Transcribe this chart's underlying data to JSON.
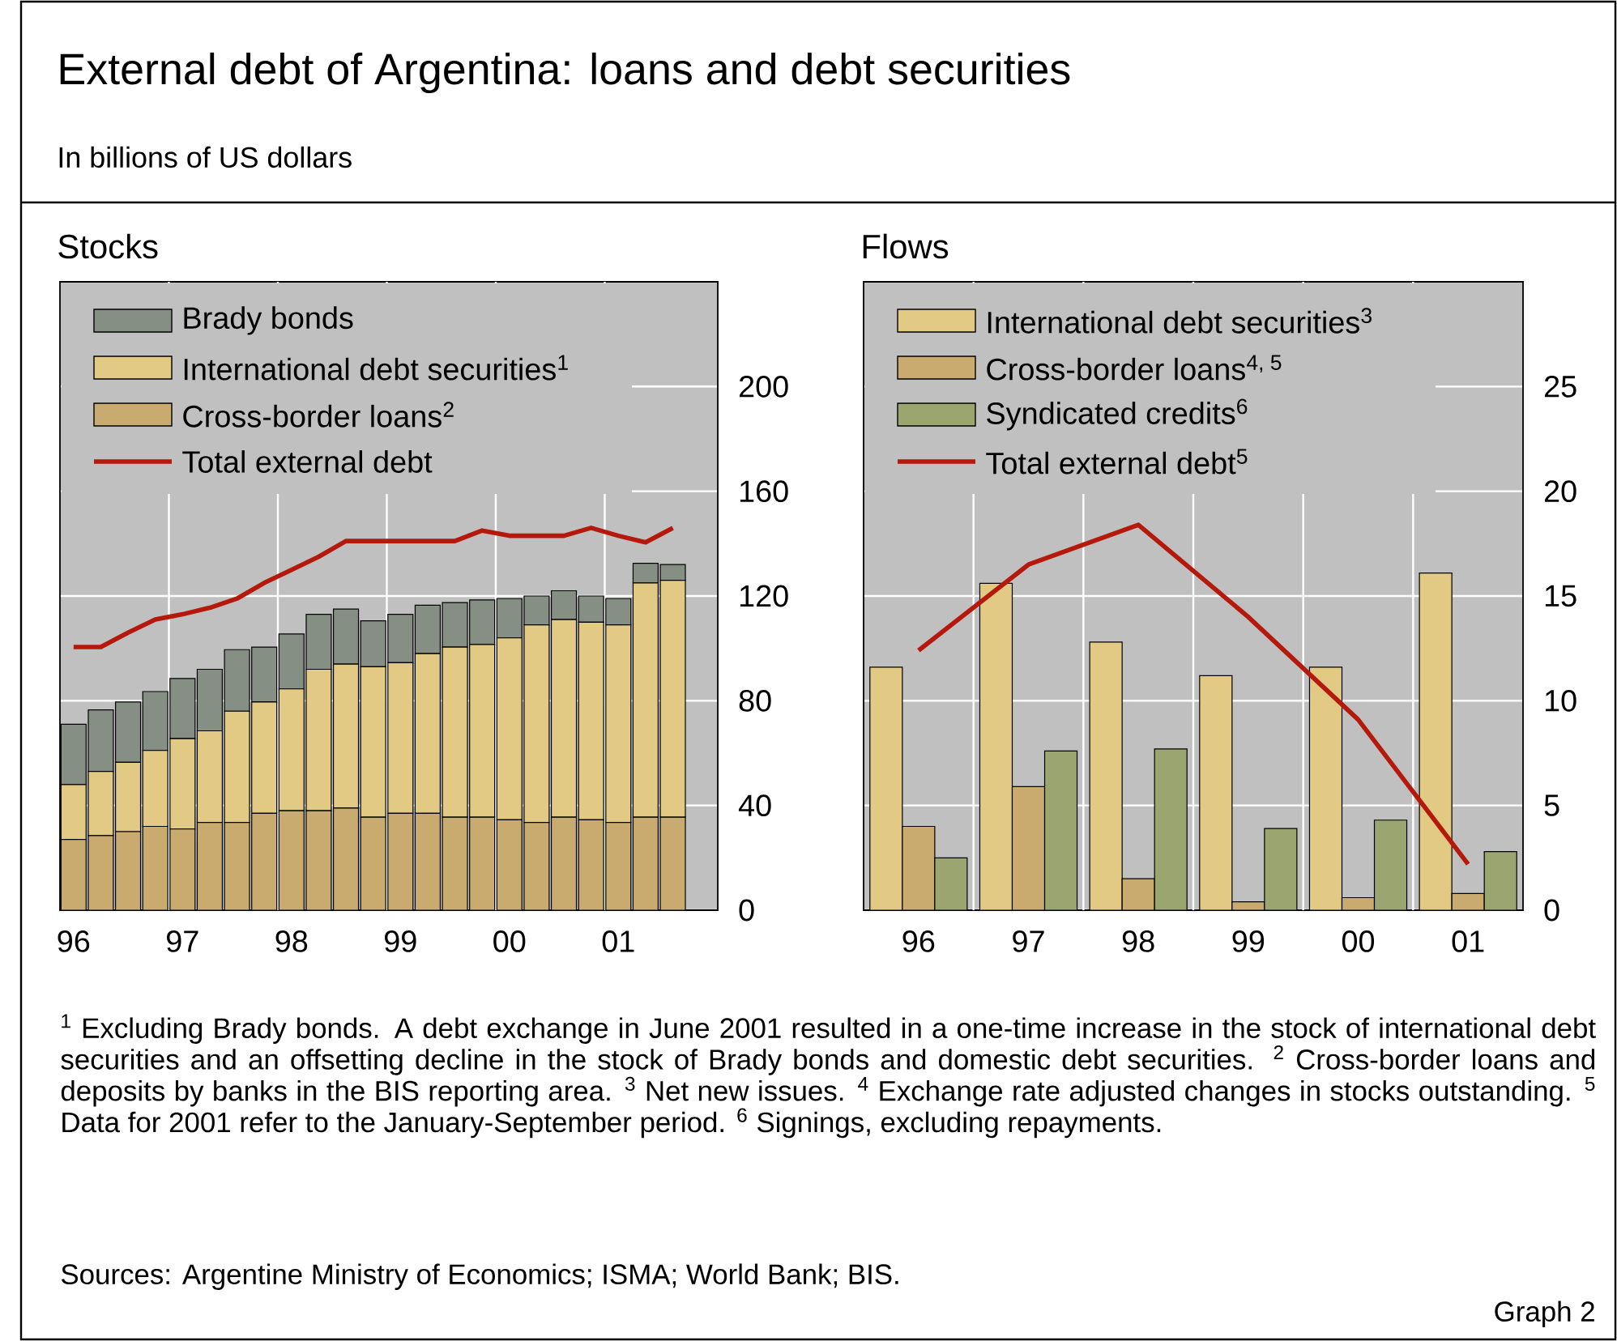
{
  "chart_data": [
    {
      "type": "other",
      "title": "External debt of Argentina: loans and debt securities",
      "subtitle": "In billions of US dollars",
      "annotations": [
        "$^{1}$ Excluding Brady bonds. A debt exchange in June 2001 resulted in a one-time increase in the stock of international debt securities and an offsetting decline in the stock of Brady bonds and domestic debt securities. $^{2}$ Cross-border loans and deposits by banks in the BIS reporting area. $^{3}$ Net new issues. $^{4}$ Exchange rate adjusted changes in stocks outstanding. $^{5}$ Data for 2001 refer to the January-September period. $^{6}$ Signings, excluding repayments.",
        "Sources: Argentine Ministry of Economics; ISMA; World Bank; BIS.",
        "Graph 2"
      ]
    },
    {
      "type": "bar",
      "title": "Stocks",
      "stacked": true,
      "grid": true,
      "legend": "top left",
      "categories": [
        "96",
        null,
        null,
        null,
        "97",
        null,
        null,
        null,
        "98",
        null,
        null,
        null,
        "99",
        null,
        null,
        null,
        "00",
        null,
        null,
        null,
        "01",
        null,
        null
      ],
      "ylim": [
        0,
        240
      ],
      "yticks": [
        0,
        40,
        80,
        120,
        160,
        200
      ],
      "series": [
        {
          "name": "Cross-border loans$^{2}$",
          "color": "#c9ab6f",
          "values": [
            27,
            28.5,
            30,
            32,
            31,
            33.5,
            33.5,
            37,
            38,
            38,
            39,
            35.5,
            37,
            37,
            35.5,
            35.5,
            34.5,
            33.5,
            35.5,
            34.5,
            33.5,
            35.5,
            35.5
          ]
        },
        {
          "name": "International debt securities$^{1}$",
          "color": "#e2ca84",
          "values": [
            21,
            24.5,
            26.5,
            29,
            34.5,
            35,
            42.5,
            42.5,
            46.5,
            54,
            55,
            57.5,
            57.5,
            61,
            65,
            66,
            69.5,
            75.5,
            75.5,
            75.5,
            75.5,
            89.5,
            90.5
          ]
        },
        {
          "name": "Brady bonds",
          "color": "#868f84",
          "values": [
            23,
            23.5,
            23,
            22.5,
            23,
            23.5,
            23.5,
            21,
            21,
            21,
            21,
            17.5,
            18.5,
            18.5,
            17,
            17,
            15,
            11,
            11,
            10,
            10,
            7.5,
            6
          ]
        },
        {
          "name": "Total external debt",
          "type": "line",
          "color": "#b4190c",
          "values": [
            100.5,
            100.5,
            106,
            111,
            113,
            115.5,
            119,
            125,
            130,
            135,
            141,
            141,
            141,
            141,
            141,
            145,
            143,
            143,
            143,
            146,
            143,
            140.5,
            146
          ]
        }
      ]
    },
    {
      "type": "bar",
      "title": "Flows",
      "grid": true,
      "legend": "top left",
      "categories": [
        "96",
        "97",
        "98",
        "99",
        "00",
        "01"
      ],
      "ylim": [
        0,
        30
      ],
      "yticks": [
        0,
        5,
        10,
        15,
        20,
        25
      ],
      "series": [
        {
          "name": "International debt securities$^{3}$",
          "color": "#e2ca84",
          "values": [
            11.6,
            15.6,
            12.8,
            11.2,
            11.6,
            16.1
          ]
        },
        {
          "name": "Cross-border loans$^{4, 5}$",
          "color": "#c9ab6f",
          "values": [
            4.0,
            5.9,
            1.5,
            0.4,
            0.6,
            0.8
          ]
        },
        {
          "name": "Syndicated credits$^{6}$",
          "color": "#9ba570",
          "values": [
            2.5,
            7.6,
            7.7,
            3.9,
            4.3,
            2.8
          ]
        },
        {
          "name": "Total external debt$^{5}$",
          "type": "line",
          "color": "#b4190c",
          "values": [
            12.4,
            16.5,
            18.4,
            14.0,
            9.1,
            2.2
          ]
        }
      ]
    }
  ]
}
